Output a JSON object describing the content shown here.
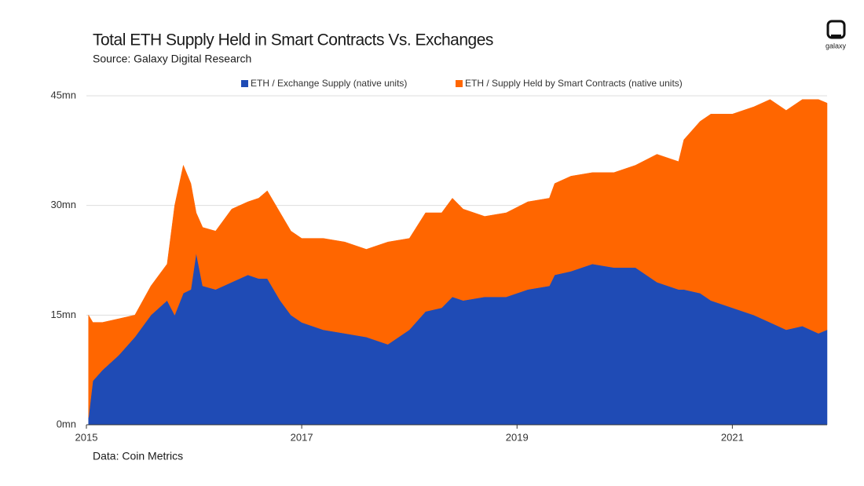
{
  "chart_data": {
    "type": "stacked_area",
    "title": "Total ETH Supply Held in Smart Contracts Vs. Exchanges",
    "subtitle": "Source: Galaxy Digital Research",
    "source_note": "Data: Coin Metrics",
    "logo": "galaxy",
    "x": [
      2015.02,
      2015.06,
      2015.15,
      2015.3,
      2015.45,
      2015.6,
      2015.75,
      2015.82,
      2015.9,
      2015.97,
      2016.02,
      2016.08,
      2016.2,
      2016.35,
      2016.5,
      2016.6,
      2016.68,
      2016.8,
      2016.9,
      2017.0,
      2017.2,
      2017.4,
      2017.6,
      2017.8,
      2018.0,
      2018.15,
      2018.3,
      2018.4,
      2018.5,
      2018.7,
      2018.9,
      2019.1,
      2019.3,
      2019.35,
      2019.5,
      2019.7,
      2019.9,
      2020.1,
      2020.3,
      2020.5,
      2020.55,
      2020.7,
      2020.8,
      2021.0,
      2021.2,
      2021.35,
      2021.5,
      2021.65,
      2021.8,
      2021.88
    ],
    "series": [
      {
        "name": "ETH / Exchange Supply (native units)",
        "color": "#1f4bb5",
        "values": [
          1,
          6,
          7.5,
          9.5,
          12,
          15,
          17,
          15,
          18,
          18.5,
          23.5,
          19,
          18.5,
          19.5,
          20.5,
          20,
          20,
          17,
          15,
          14,
          13,
          12.5,
          12,
          11,
          13,
          15.5,
          16,
          17.5,
          17,
          17.5,
          17.5,
          18.5,
          19,
          20.5,
          21,
          22,
          21.5,
          21.5,
          19.5,
          18.5,
          18.5,
          18,
          17,
          16,
          15,
          14,
          13,
          13.5,
          12.5,
          13
        ]
      },
      {
        "name": "ETH / Supply Held by Smart Contracts (native units)",
        "color": "#ff6600",
        "values": [
          14,
          8,
          6.5,
          5,
          3,
          4,
          5,
          15,
          17.5,
          14.5,
          5.5,
          8,
          8,
          10,
          10,
          11,
          12,
          12,
          11.5,
          11.5,
          12.5,
          12.5,
          12,
          14,
          12.5,
          13.5,
          13,
          13.5,
          12.5,
          11,
          11.5,
          12,
          12,
          12.5,
          13,
          12.5,
          13,
          14,
          17.5,
          17.5,
          20.5,
          23.5,
          25.5,
          26.5,
          28.5,
          30.5,
          30,
          31,
          32,
          31
        ]
      }
    ],
    "xlim": [
      2015,
      2021.88
    ],
    "xticks": [
      2015,
      2017,
      2019,
      2021
    ],
    "ylim": [
      0,
      45
    ],
    "yticks": [
      {
        "value": 0,
        "label": "0mn"
      },
      {
        "value": 15,
        "label": "15mn"
      },
      {
        "value": 30,
        "label": "30mn"
      },
      {
        "value": 45,
        "label": "45mn"
      }
    ],
    "grid": true,
    "legend": "top"
  }
}
